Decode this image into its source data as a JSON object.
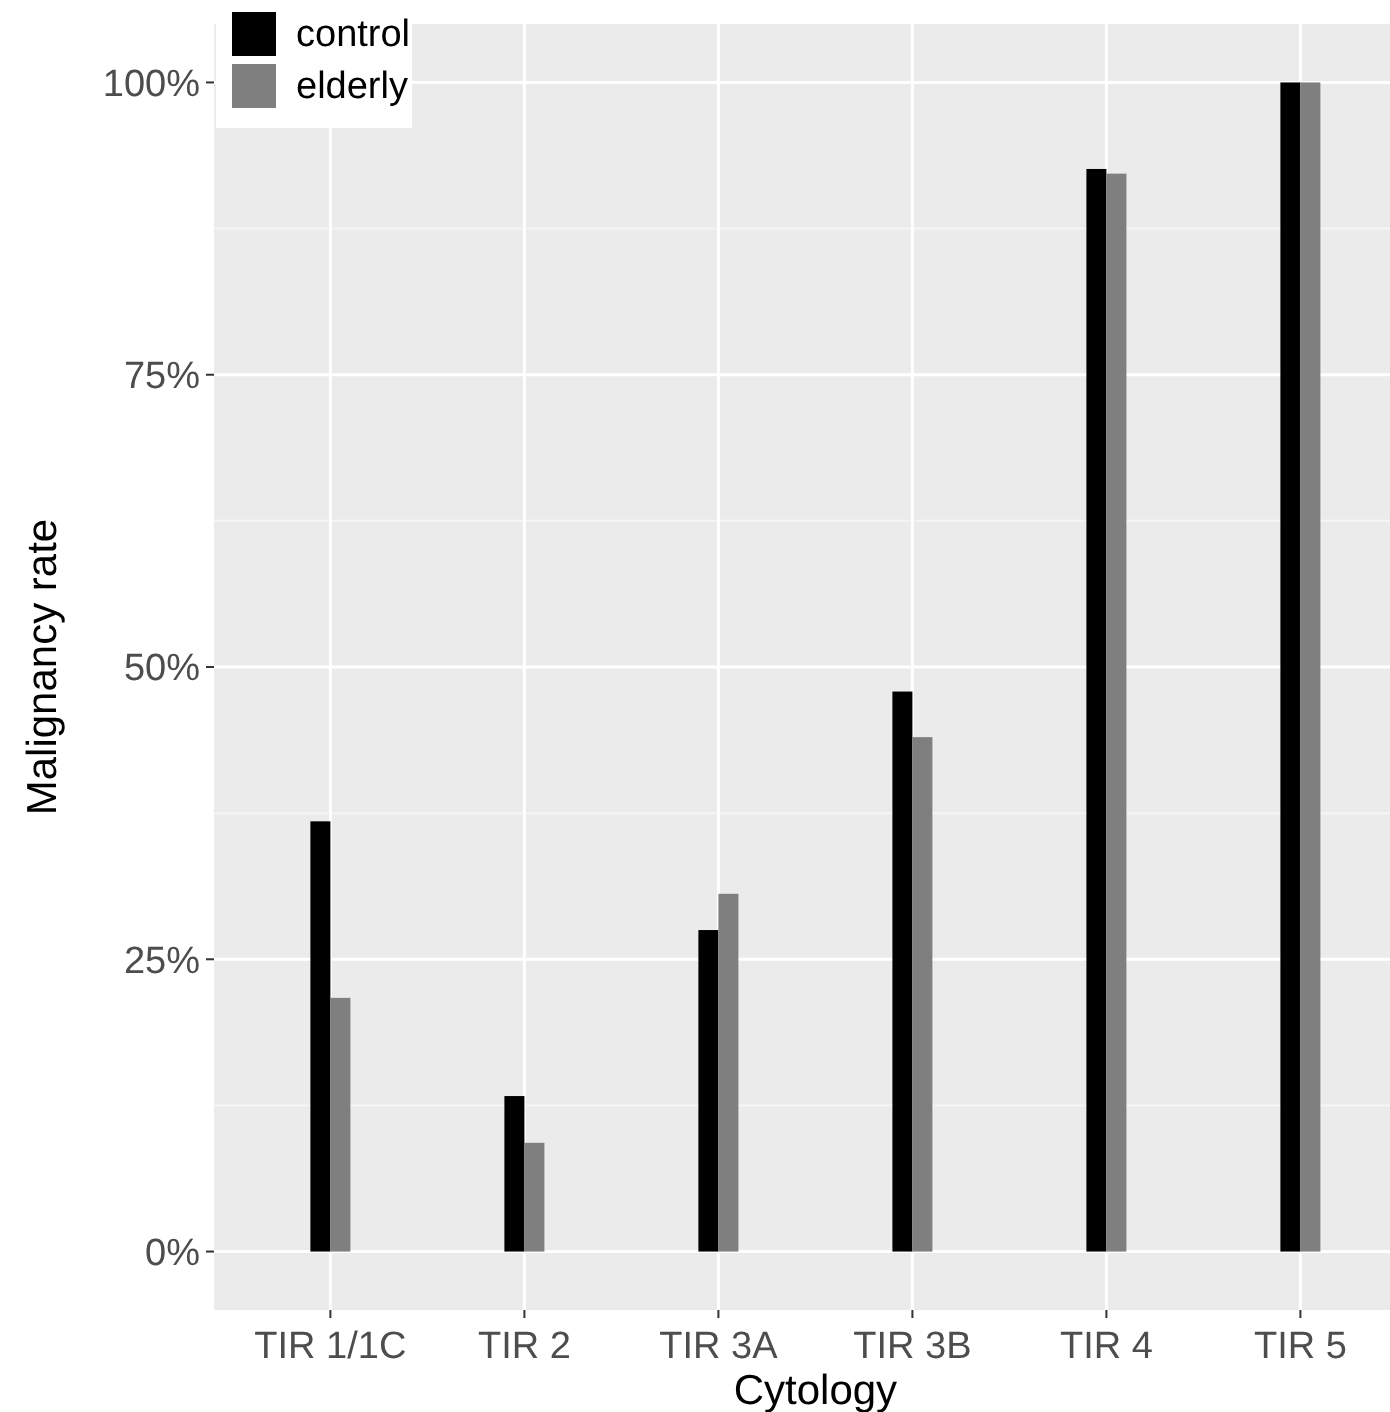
{
  "chart_data": {
    "type": "bar",
    "xlabel": "Cytology",
    "ylabel": "Malignancy rate",
    "categories": [
      "TIR 1/1C",
      "TIR 2",
      "TIR 3A",
      "TIR 3B",
      "TIR 4",
      "TIR 5"
    ],
    "series": [
      {
        "name": "control",
        "color": "#000000",
        "values": [
          36.8,
          13.3,
          27.5,
          47.9,
          92.6,
          100
        ]
      },
      {
        "name": "elderly",
        "color": "#7f7f7f",
        "values": [
          21.7,
          9.3,
          30.6,
          44.0,
          92.2,
          100
        ]
      }
    ],
    "ylim": [
      -5,
      105
    ],
    "yticks": [
      {
        "value": 0,
        "label": "0%"
      },
      {
        "value": 25,
        "label": "25%"
      },
      {
        "value": 50,
        "label": "50%"
      },
      {
        "value": 75,
        "label": "75%"
      },
      {
        "value": 100,
        "label": "100%"
      }
    ],
    "grid": true,
    "legend": "top left"
  }
}
